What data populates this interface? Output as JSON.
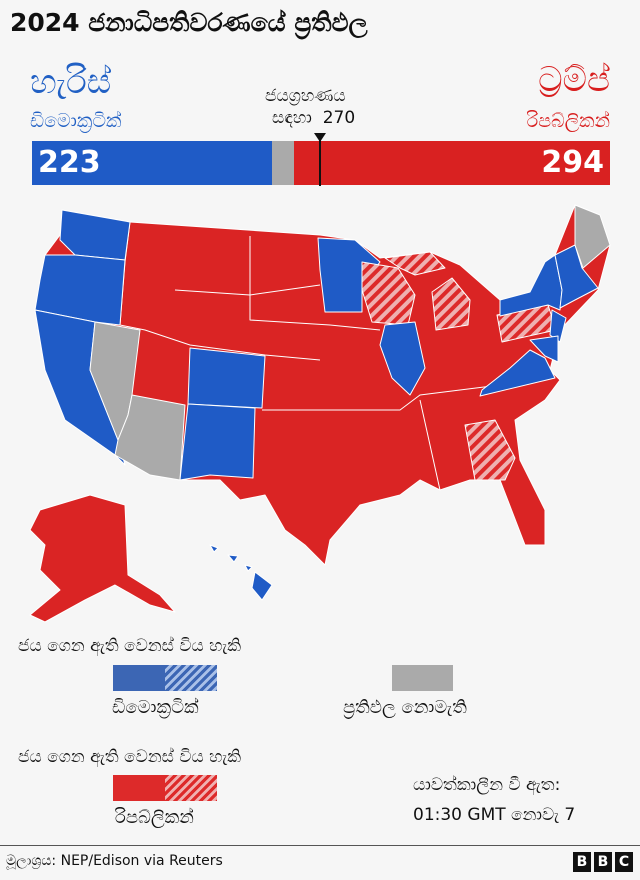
{
  "title": "2024 ජනාධිපතිවරණයේ ප්‍රතිඵල",
  "candidates": {
    "dem": {
      "name": "හැරිස්",
      "party": "ඩිමොක්‍රටික්",
      "votes": "223",
      "color": "#1f5bc6"
    },
    "rep": {
      "name": "ට්‍රම්ප්",
      "party": "රිපබ්ලිකන්",
      "votes": "294",
      "color": "#d92121"
    },
    "undecided_color": "#aaaaaa"
  },
  "threshold": {
    "line1": "ජයග්‍රහණය",
    "line2": "සඳහා",
    "value": "270"
  },
  "electoral_total": 538,
  "map_states": {
    "dem_won": [
      "WA",
      "OR",
      "CA",
      "CO",
      "NM",
      "MN",
      "IL",
      "VA",
      "NY",
      "VT",
      "NH",
      "MA",
      "CT",
      "RI",
      "NJ",
      "DE",
      "MD",
      "HI"
    ],
    "rep_won": [
      "ID",
      "MT",
      "WY",
      "UT",
      "ND",
      "SD",
      "NE",
      "KS",
      "OK",
      "TX",
      "IA",
      "MO",
      "AR",
      "LA",
      "IN",
      "OH",
      "KY",
      "TN",
      "MS",
      "AL",
      "FL",
      "SC",
      "NC",
      "WV",
      "AK"
    ],
    "rep_projected": [
      "WI",
      "MI",
      "PA",
      "GA"
    ],
    "no_result": [
      "NV",
      "AZ",
      "ME"
    ]
  },
  "legend": {
    "dem_header": "ජය ගෙන ඇති  වෙනස් විය හැකි",
    "dem_label": "ඩිමොක්‍රටික්",
    "none_label": "ප්‍රතිඵල නොමැති",
    "rep_header": "ජය ගෙන ඇති  වෙනස් විය හැකි",
    "rep_label": "රිපබ්ලිකන්"
  },
  "updated": {
    "label": "යාවත්කාලීන වී ඇත:",
    "time": "01:30 GMT  නොවැ 7"
  },
  "source": "මූලාශ්‍රය:  NEP/Edison via Reuters",
  "logo": "BBC"
}
